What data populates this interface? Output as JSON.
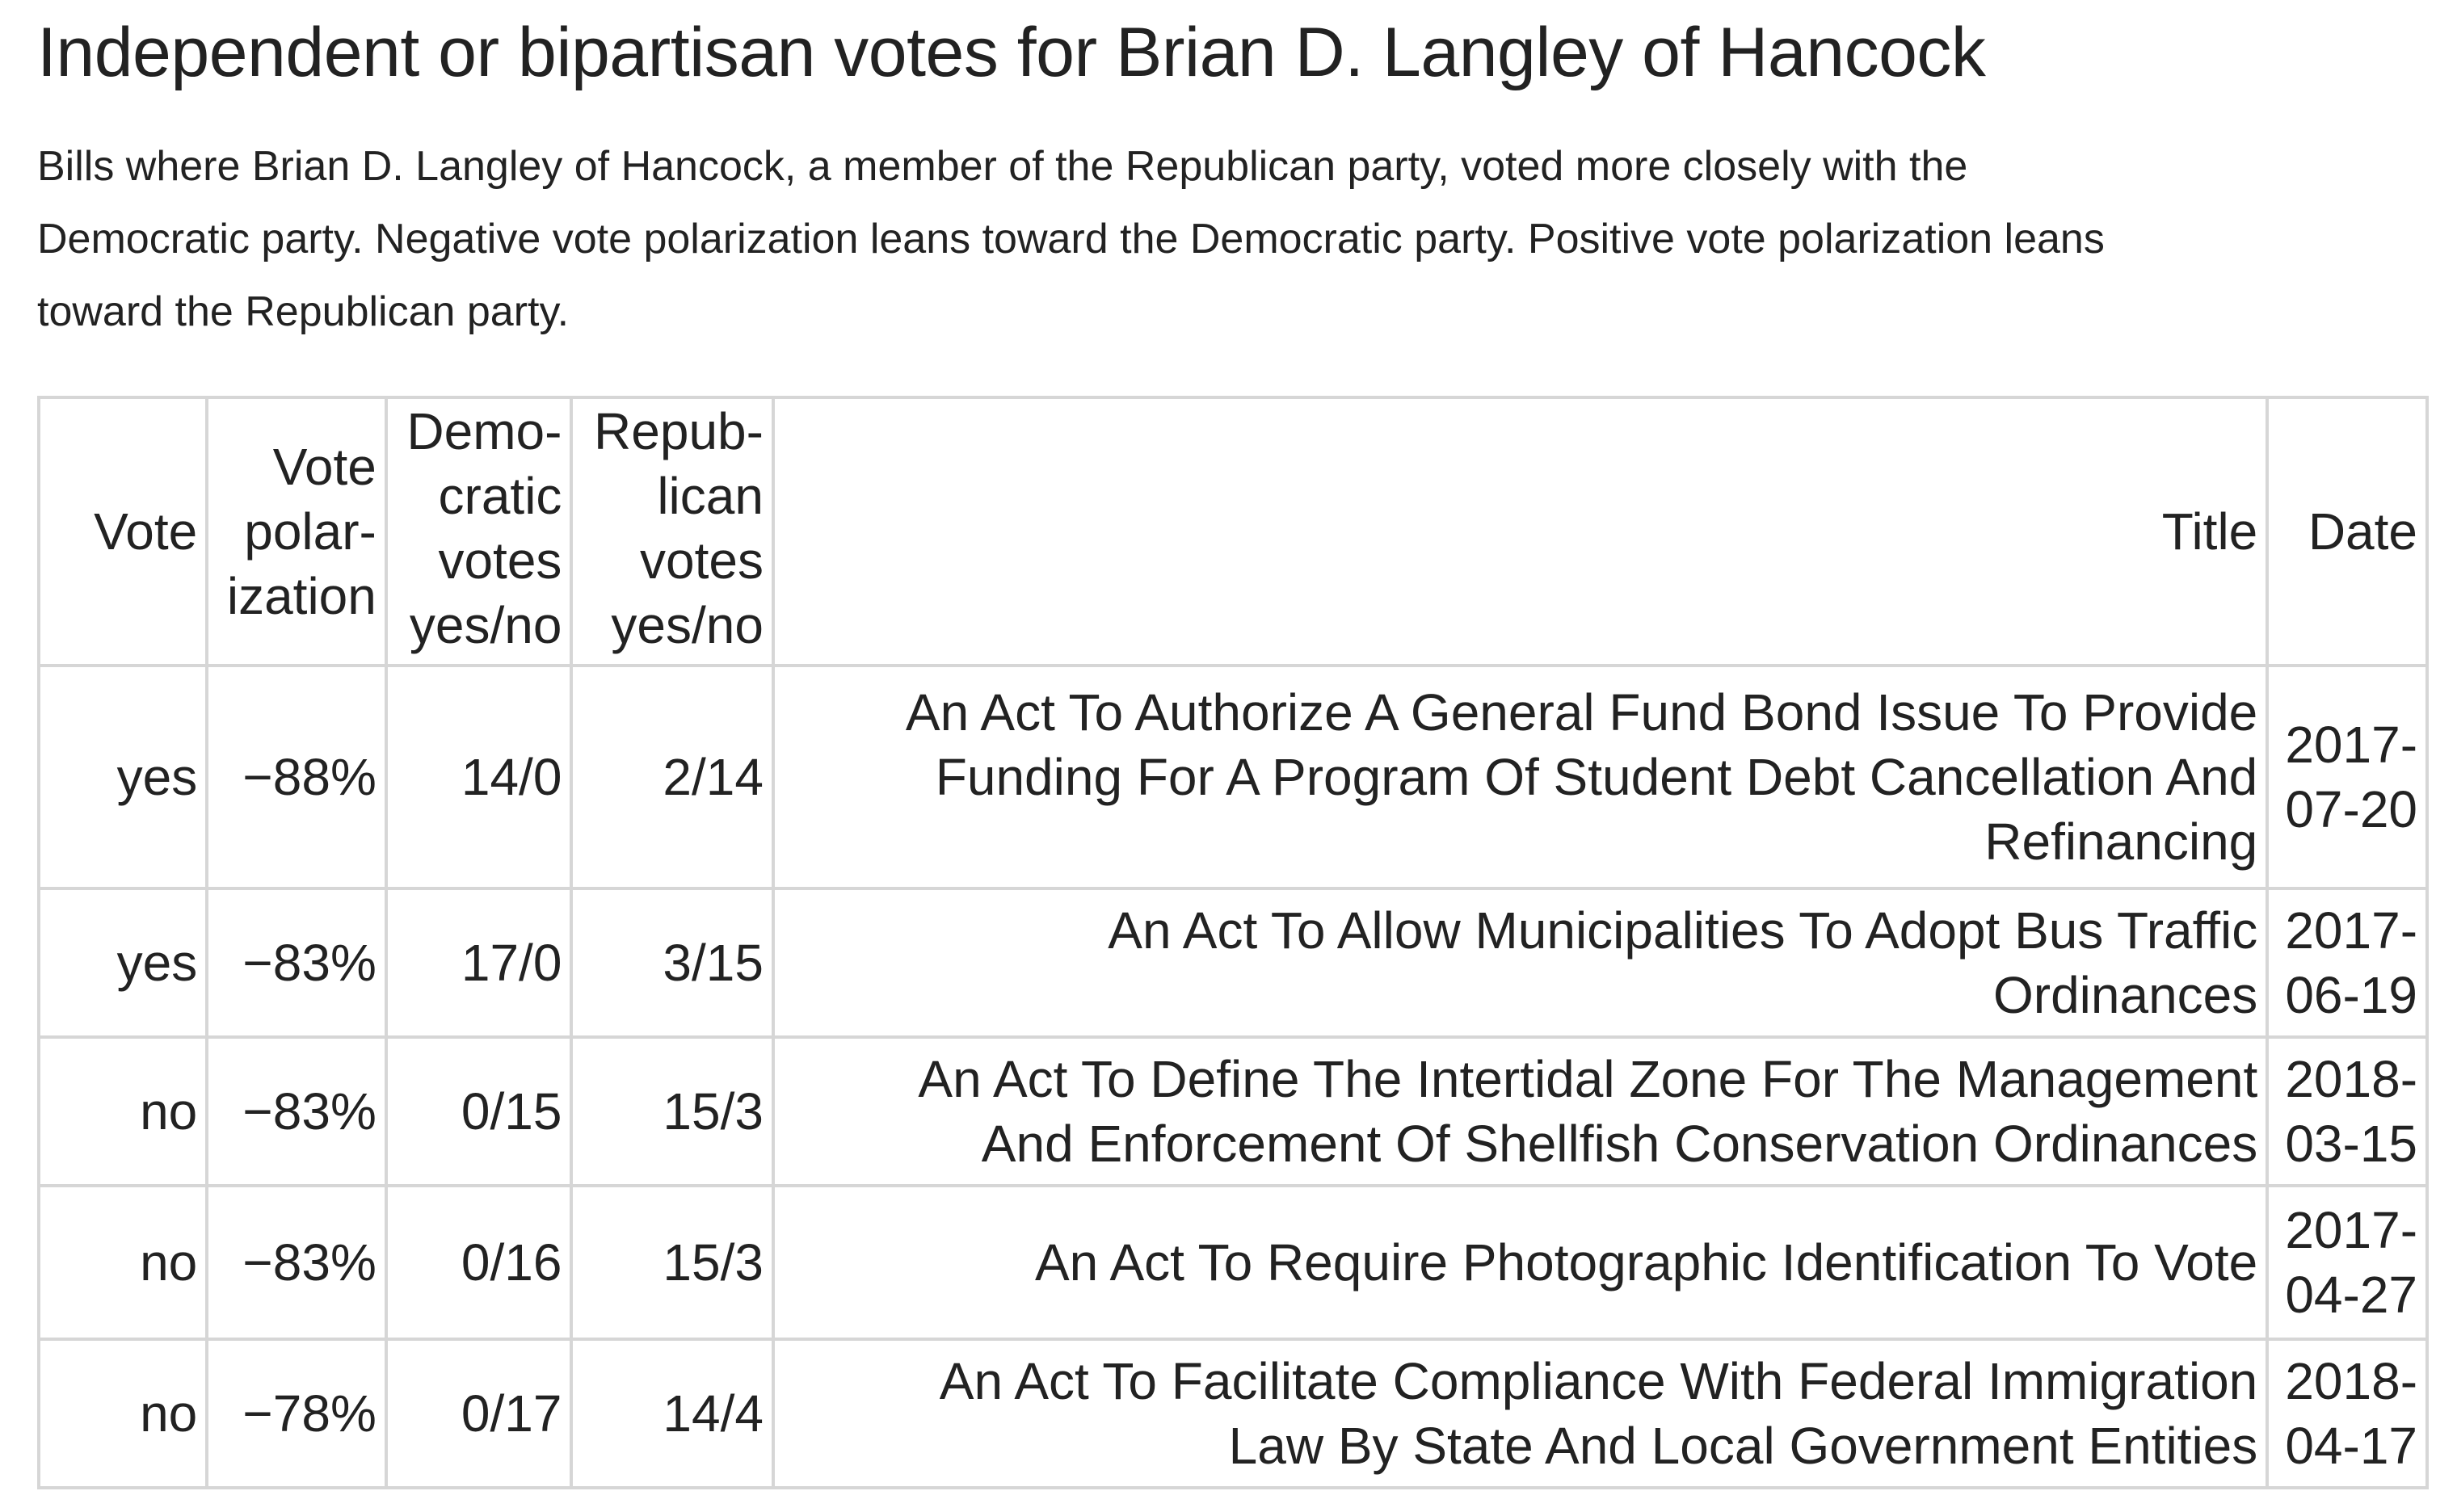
{
  "page": {
    "title": "Independent or bipartisan votes for Brian D. Langley of Hancock",
    "intro_lines": [
      "Bills where Brian D. Langley of Hancock, a member of the Republican party, voted more closely with the",
      "Democratic party. Negative vote polarization leans toward the Democratic party. Positive vote polarization leans",
      "toward the Republican party."
    ]
  },
  "table": {
    "headers": {
      "vote": "Vote",
      "polarization": [
        "Vote",
        "polar-",
        "ization"
      ],
      "democratic": [
        "Demo-",
        "cratic",
        "votes",
        "yes/no"
      ],
      "republican": [
        "Repub-",
        "lican",
        "votes",
        "yes/no"
      ],
      "title": "Title",
      "date": "Date"
    },
    "rows": [
      {
        "vote": "yes",
        "polarization": "−88%",
        "dem": "14/0",
        "rep": "2/14",
        "title_lines": [
          "An Act To Authorize A General Fund Bond Issue To Provide",
          "Funding For A Program Of Student Debt Cancellation And",
          "Refinancing"
        ],
        "date_lines": [
          "2017-",
          "07-20"
        ]
      },
      {
        "vote": "yes",
        "polarization": "−83%",
        "dem": "17/0",
        "rep": "3/15",
        "title_lines": [
          "An Act To Allow Municipalities To Adopt Bus Traffic",
          "Ordinances"
        ],
        "date_lines": [
          "2017-",
          "06-19"
        ]
      },
      {
        "vote": "no",
        "polarization": "−83%",
        "dem": "0/15",
        "rep": "15/3",
        "title_lines": [
          "An Act To Define The Intertidal Zone For The Management",
          "And Enforcement Of Shellfish Conservation Ordinances"
        ],
        "date_lines": [
          "2018-",
          "03-15"
        ]
      },
      {
        "vote": "no",
        "polarization": "−83%",
        "dem": "0/16",
        "rep": "15/3",
        "title_lines": [
          "An Act To Require Photographic Identification To Vote"
        ],
        "date_lines": [
          "2017-",
          "04-27"
        ]
      },
      {
        "vote": "no",
        "polarization": "−78%",
        "dem": "0/17",
        "rep": "14/4",
        "title_lines": [
          "An Act To Facilitate Compliance With Federal Immigration",
          "Law By State And Local Government Entities"
        ],
        "date_lines": [
          "2018-",
          "04-17"
        ]
      }
    ]
  }
}
